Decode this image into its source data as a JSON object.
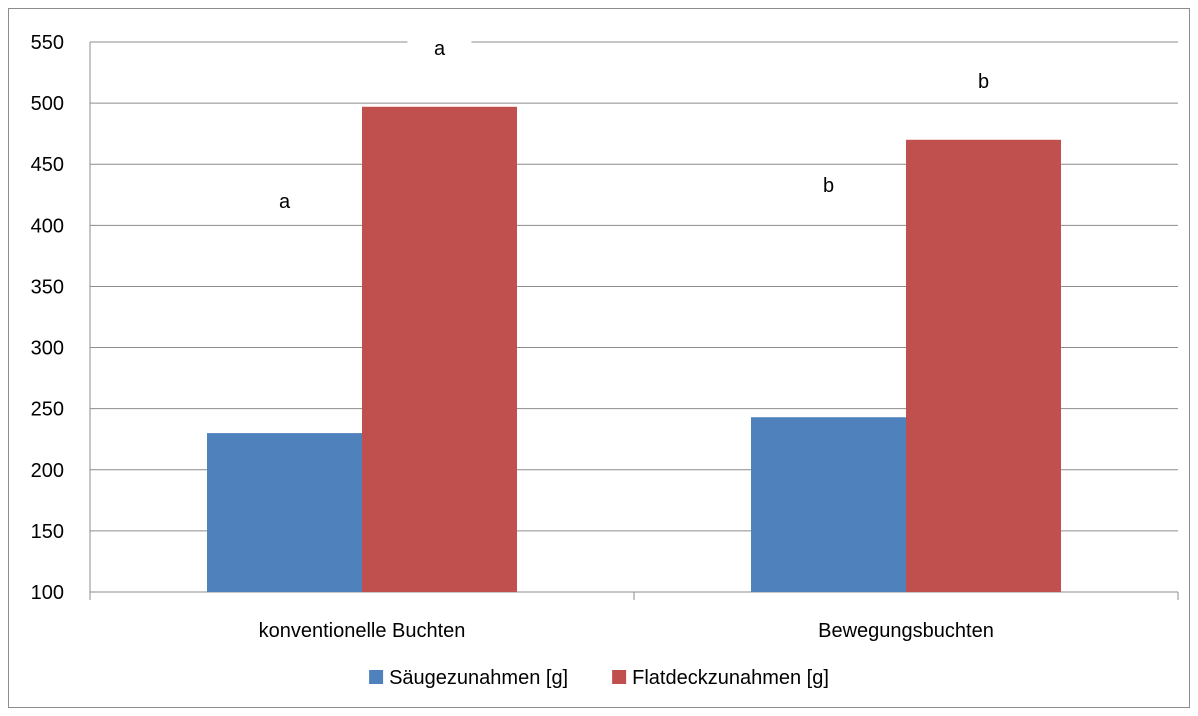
{
  "chart_data": {
    "type": "bar",
    "categories": [
      "konventionelle Buchten",
      "Bewegungsbuchten"
    ],
    "series": [
      {
        "name": "Säugezunahmen [g]",
        "color": "#4F81BD",
        "values": [
          230,
          243
        ]
      },
      {
        "name": "Flatdeckzunahmen [g]",
        "color": "#C0504D",
        "values": [
          497,
          470
        ]
      }
    ],
    "annotations": [
      {
        "category": "konventionelle Buchten",
        "series": "Säugezunahmen [g]",
        "text": "a"
      },
      {
        "category": "konventionelle Buchten",
        "series": "Flatdeckzunahmen [g]",
        "text": "a"
      },
      {
        "category": "Bewegungsbuchten",
        "series": "Säugezunahmen [g]",
        "text": "b"
      },
      {
        "category": "Bewegungsbuchten",
        "series": "Flatdeckzunahmen [g]",
        "text": "b"
      }
    ],
    "ylim": [
      100,
      550
    ],
    "yticks": [
      100,
      150,
      200,
      250,
      300,
      350,
      400,
      450,
      500,
      550
    ],
    "grid": true,
    "legend_position": "bottom"
  }
}
